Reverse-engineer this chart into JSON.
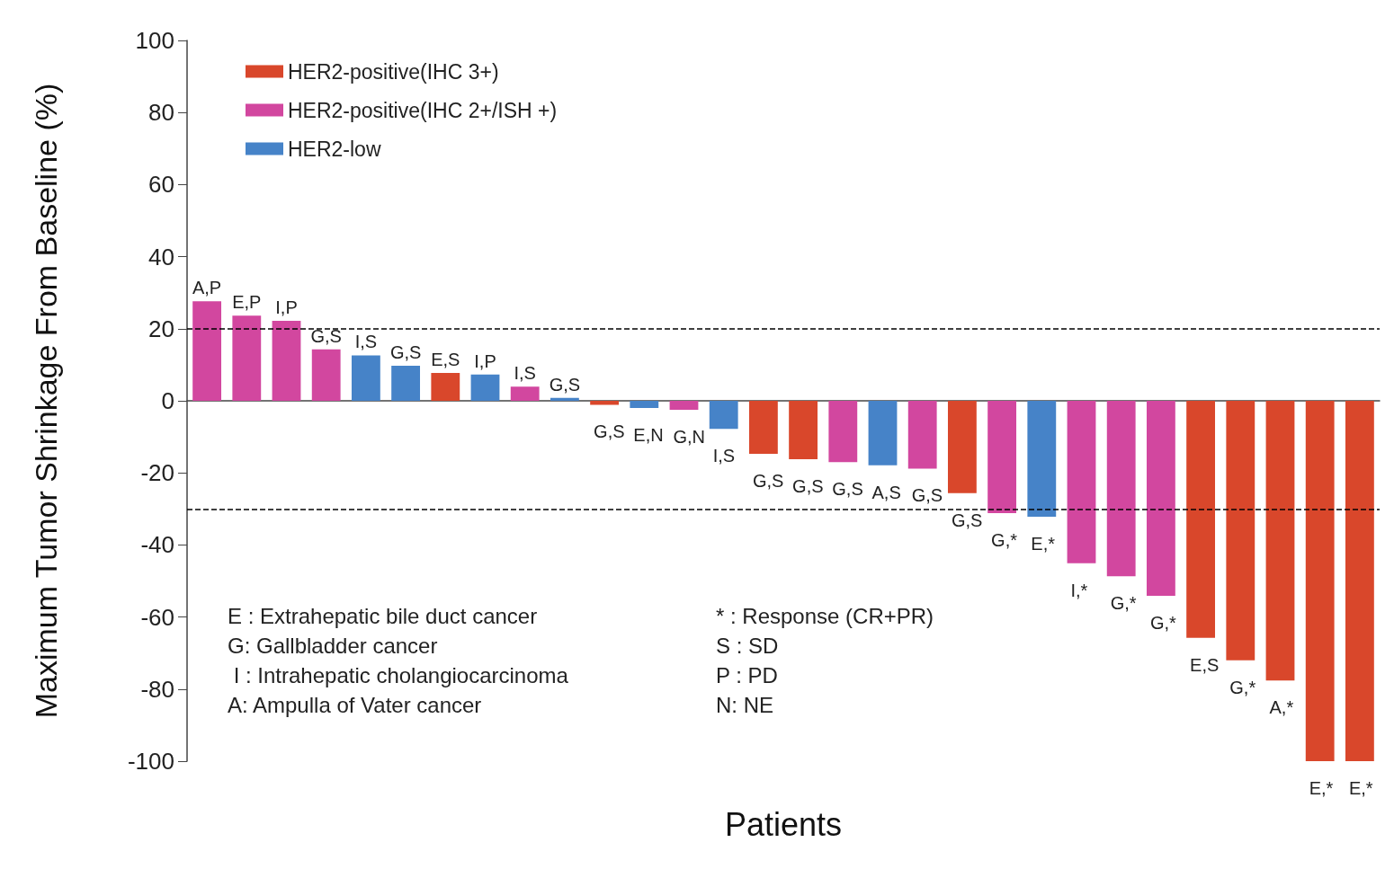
{
  "chart_data": {
    "type": "bar",
    "xlabel": "Patients",
    "ylabel": "Maximum Tumor Shrinkage From Baseline (%)",
    "categories": [
      null,
      null,
      null,
      null,
      null,
      null,
      null,
      null,
      null,
      null,
      null,
      null,
      null,
      null,
      null,
      null,
      null,
      null,
      null,
      null,
      null,
      null,
      null,
      null,
      null,
      null,
      null,
      null,
      null,
      null
    ],
    "series": [
      {
        "name": "HER2-positive(IHC 3+)",
        "color": "#d9472b",
        "values": [
          null,
          null,
          null,
          null,
          null,
          null,
          7.7,
          null,
          null,
          null,
          -1.1,
          null,
          null,
          null,
          -14.7,
          -16.2,
          null,
          null,
          null,
          -25.6,
          null,
          null,
          null,
          null,
          null,
          -65.8,
          -72.0,
          -77.6,
          -100,
          -100
        ],
        "value_labels": [
          null,
          null,
          null,
          null,
          null,
          null,
          "E,S",
          null,
          null,
          null,
          "G,S",
          null,
          null,
          null,
          "G,S",
          "G,S",
          null,
          null,
          null,
          "G,S",
          null,
          null,
          null,
          null,
          null,
          "E,S",
          "G,*",
          "A,*",
          "E,*",
          "E,*"
        ]
      },
      {
        "name": "HER2-positive(IHC 2+/ISH +)",
        "color": "#d2479f",
        "values": [
          27.6,
          23.6,
          22.2,
          14.3,
          null,
          null,
          null,
          null,
          3.9,
          null,
          null,
          null,
          -2.5,
          null,
          null,
          null,
          -17.0,
          null,
          -18.8,
          null,
          -31.2,
          null,
          -45.1,
          -48.7,
          -54.1,
          null,
          null,
          null,
          null,
          null
        ],
        "value_labels": [
          "A,P",
          "E,P",
          "I,P",
          "G,S",
          null,
          null,
          null,
          null,
          "I,S",
          null,
          null,
          null,
          "G,N",
          null,
          null,
          null,
          "G,S",
          null,
          "G,S",
          null,
          "G,*",
          null,
          "I,*",
          "G,*",
          "G,*",
          null,
          null,
          null,
          null,
          null
        ]
      },
      {
        "name": "HER2-low",
        "color": "#4683c8",
        "values": [
          null,
          null,
          null,
          null,
          12.6,
          9.7,
          null,
          7.3,
          null,
          0.8,
          null,
          -2.0,
          null,
          -7.8,
          null,
          null,
          null,
          -17.9,
          null,
          null,
          null,
          -32.2,
          null,
          null,
          null,
          null,
          null,
          null,
          null,
          null
        ],
        "value_labels": [
          null,
          null,
          null,
          null,
          "I,S",
          "G,S",
          null,
          "I,P",
          null,
          "G,S",
          null,
          "E,N",
          null,
          "I,S",
          null,
          null,
          null,
          "A,S",
          null,
          null,
          null,
          "E,*",
          null,
          null,
          null,
          null,
          null,
          null,
          null,
          null
        ]
      }
    ],
    "ylim": [
      -100,
      100
    ],
    "yticks": [
      -100,
      -80,
      -60,
      -40,
      -20,
      0,
      20,
      40,
      60,
      80,
      100
    ],
    "ref_lines": [
      {
        "axis": "y",
        "value": 20,
        "line_style": "dashed",
        "color": "#000000"
      },
      {
        "axis": "y",
        "value": -30,
        "line_style": "dashed",
        "color": "#000000"
      }
    ],
    "legend": "top left",
    "grid": false,
    "tick_labels": "y",
    "annotations": [
      "E : Extrahepatic bile duct cancer",
      "G: Gallbladder cancer",
      " I : Intrahepatic cholangiocarcinoma",
      "A: Ampulla of Vater cancer",
      "* : Response (CR+PR)",
      "S : SD",
      "P : PD",
      "N: NE"
    ]
  }
}
